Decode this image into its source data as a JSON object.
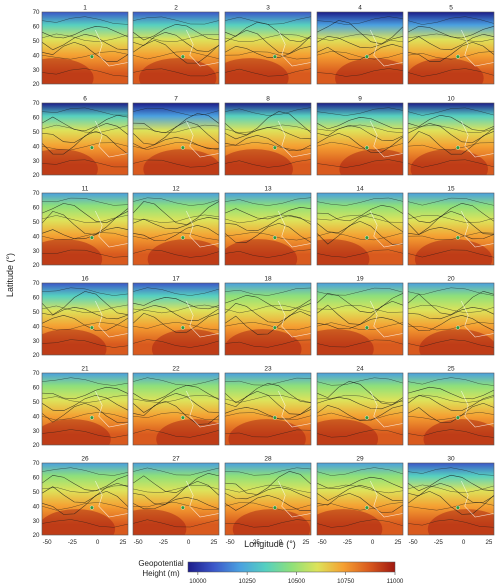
{
  "chart_data": {
    "type": "heatmap",
    "panel_titles": [
      "1",
      "2",
      "3",
      "4",
      "5",
      "6",
      "7",
      "8",
      "9",
      "10",
      "11",
      "12",
      "13",
      "14",
      "15",
      "16",
      "17",
      "18",
      "19",
      "20",
      "21",
      "22",
      "23",
      "24",
      "25",
      "26",
      "27",
      "28",
      "29",
      "30"
    ],
    "grid": {
      "rows": 6,
      "cols": 5
    },
    "xlabel": "Longitude (°)",
    "ylabel": "Latitude (°)",
    "xlim": [
      -55,
      30
    ],
    "ylim": [
      20,
      70
    ],
    "xticks": [
      "-50",
      "-25",
      "0",
      "25"
    ],
    "yticks": [
      "20",
      "30",
      "40",
      "50",
      "60",
      "70"
    ],
    "colorbar": {
      "title_line1": "Geopotential",
      "title_line2": "Height (m)",
      "range": [
        9950,
        11000
      ],
      "ticks": [
        "10000",
        "10250",
        "10500",
        "10750",
        "11000"
      ],
      "colors": [
        "#1c1c8a",
        "#3b57c9",
        "#4aa0e0",
        "#56d0c0",
        "#8ee07a",
        "#dde35a",
        "#f5a032",
        "#d95a1e",
        "#a01810"
      ]
    },
    "overlay": "wind streamlines"
  }
}
